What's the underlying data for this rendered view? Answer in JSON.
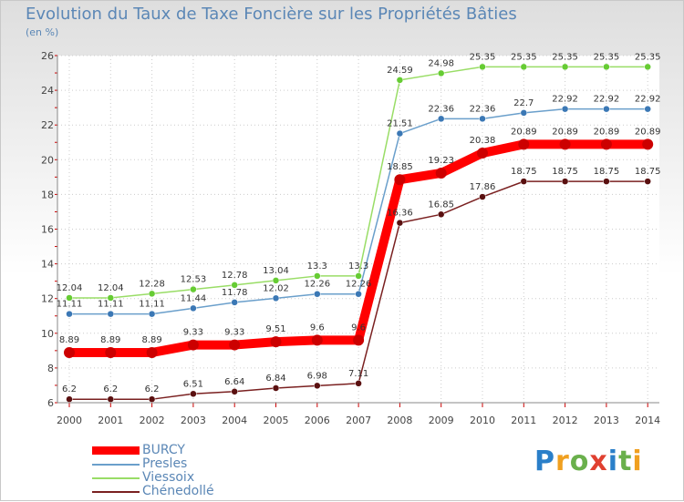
{
  "chart_data": {
    "type": "line",
    "title": "Evolution du Taux de Taxe Foncière sur les Propriétés Bâties",
    "subtitle": "(en %)",
    "xlabel": "",
    "ylabel": "",
    "ylim": [
      6,
      26
    ],
    "y_ticks": [
      "6",
      "8",
      "10",
      "12",
      "14",
      "16",
      "18",
      "20",
      "22",
      "24",
      "26"
    ],
    "categories": [
      "2000",
      "2001",
      "2002",
      "2003",
      "2004",
      "2005",
      "2006",
      "2007",
      "2008",
      "2009",
      "2010",
      "2011",
      "2012",
      "2013",
      "2014"
    ],
    "series": [
      {
        "name": "BURCY",
        "color": "#ff0000",
        "marker": "#cc0000",
        "values": [
          8.89,
          8.89,
          8.89,
          9.33,
          9.33,
          9.51,
          9.6,
          9.6,
          18.85,
          19.23,
          20.38,
          20.89,
          20.89,
          20.89,
          20.89
        ],
        "labels": [
          "8.89",
          "8.89",
          "8.89",
          "9.33",
          "9.33",
          "9.51",
          "9.6",
          "9.6",
          "18.85",
          "19.23",
          "20.38",
          "20.89",
          "20.89",
          "20.89",
          "20.89"
        ]
      },
      {
        "name": "Presles",
        "color": "#6a9fcb",
        "marker": "#3b78b5",
        "values": [
          11.11,
          11.11,
          11.11,
          11.44,
          11.78,
          12.02,
          12.26,
          12.26,
          21.51,
          22.36,
          22.36,
          22.7,
          22.92,
          22.92,
          22.92
        ],
        "labels": [
          "11.11",
          "11.11",
          "11.11",
          "11.44",
          "11.78",
          "12.02",
          "12.26",
          "12.26",
          "21.51",
          "22.36",
          "22.36",
          "22.7",
          "22.92",
          "22.92",
          "22.92"
        ]
      },
      {
        "name": "Viessoix",
        "color": "#99dd66",
        "marker": "#66cc33",
        "values": [
          12.04,
          12.04,
          12.28,
          12.53,
          12.78,
          13.04,
          13.3,
          13.3,
          24.59,
          24.98,
          25.35,
          25.35,
          25.35,
          25.35,
          25.35
        ],
        "labels": [
          "12.04",
          "12.04",
          "12.28",
          "12.53",
          "12.78",
          "13.04",
          "13.3",
          "13.3",
          "24.59",
          "24.98",
          "25.35",
          "25.35",
          "25.35",
          "25.35",
          "25.35"
        ]
      },
      {
        "name": "Chénedollé",
        "color": "#7a2020",
        "marker": "#5a1010",
        "values": [
          6.2,
          6.2,
          6.2,
          6.51,
          6.64,
          6.84,
          6.98,
          7.11,
          16.36,
          16.85,
          17.86,
          18.75,
          18.75,
          18.75,
          18.75
        ],
        "labels": [
          "6.2",
          "6.2",
          "6.2",
          "6.51",
          "6.64",
          "6.84",
          "6.98",
          "7.11",
          "16.36",
          "16.85",
          "17.86",
          "18.75",
          "18.75",
          "18.75",
          "18.75"
        ]
      }
    ],
    "legend_position": "bottom-left",
    "grid": true
  },
  "logo": {
    "text": "Proxiti"
  }
}
